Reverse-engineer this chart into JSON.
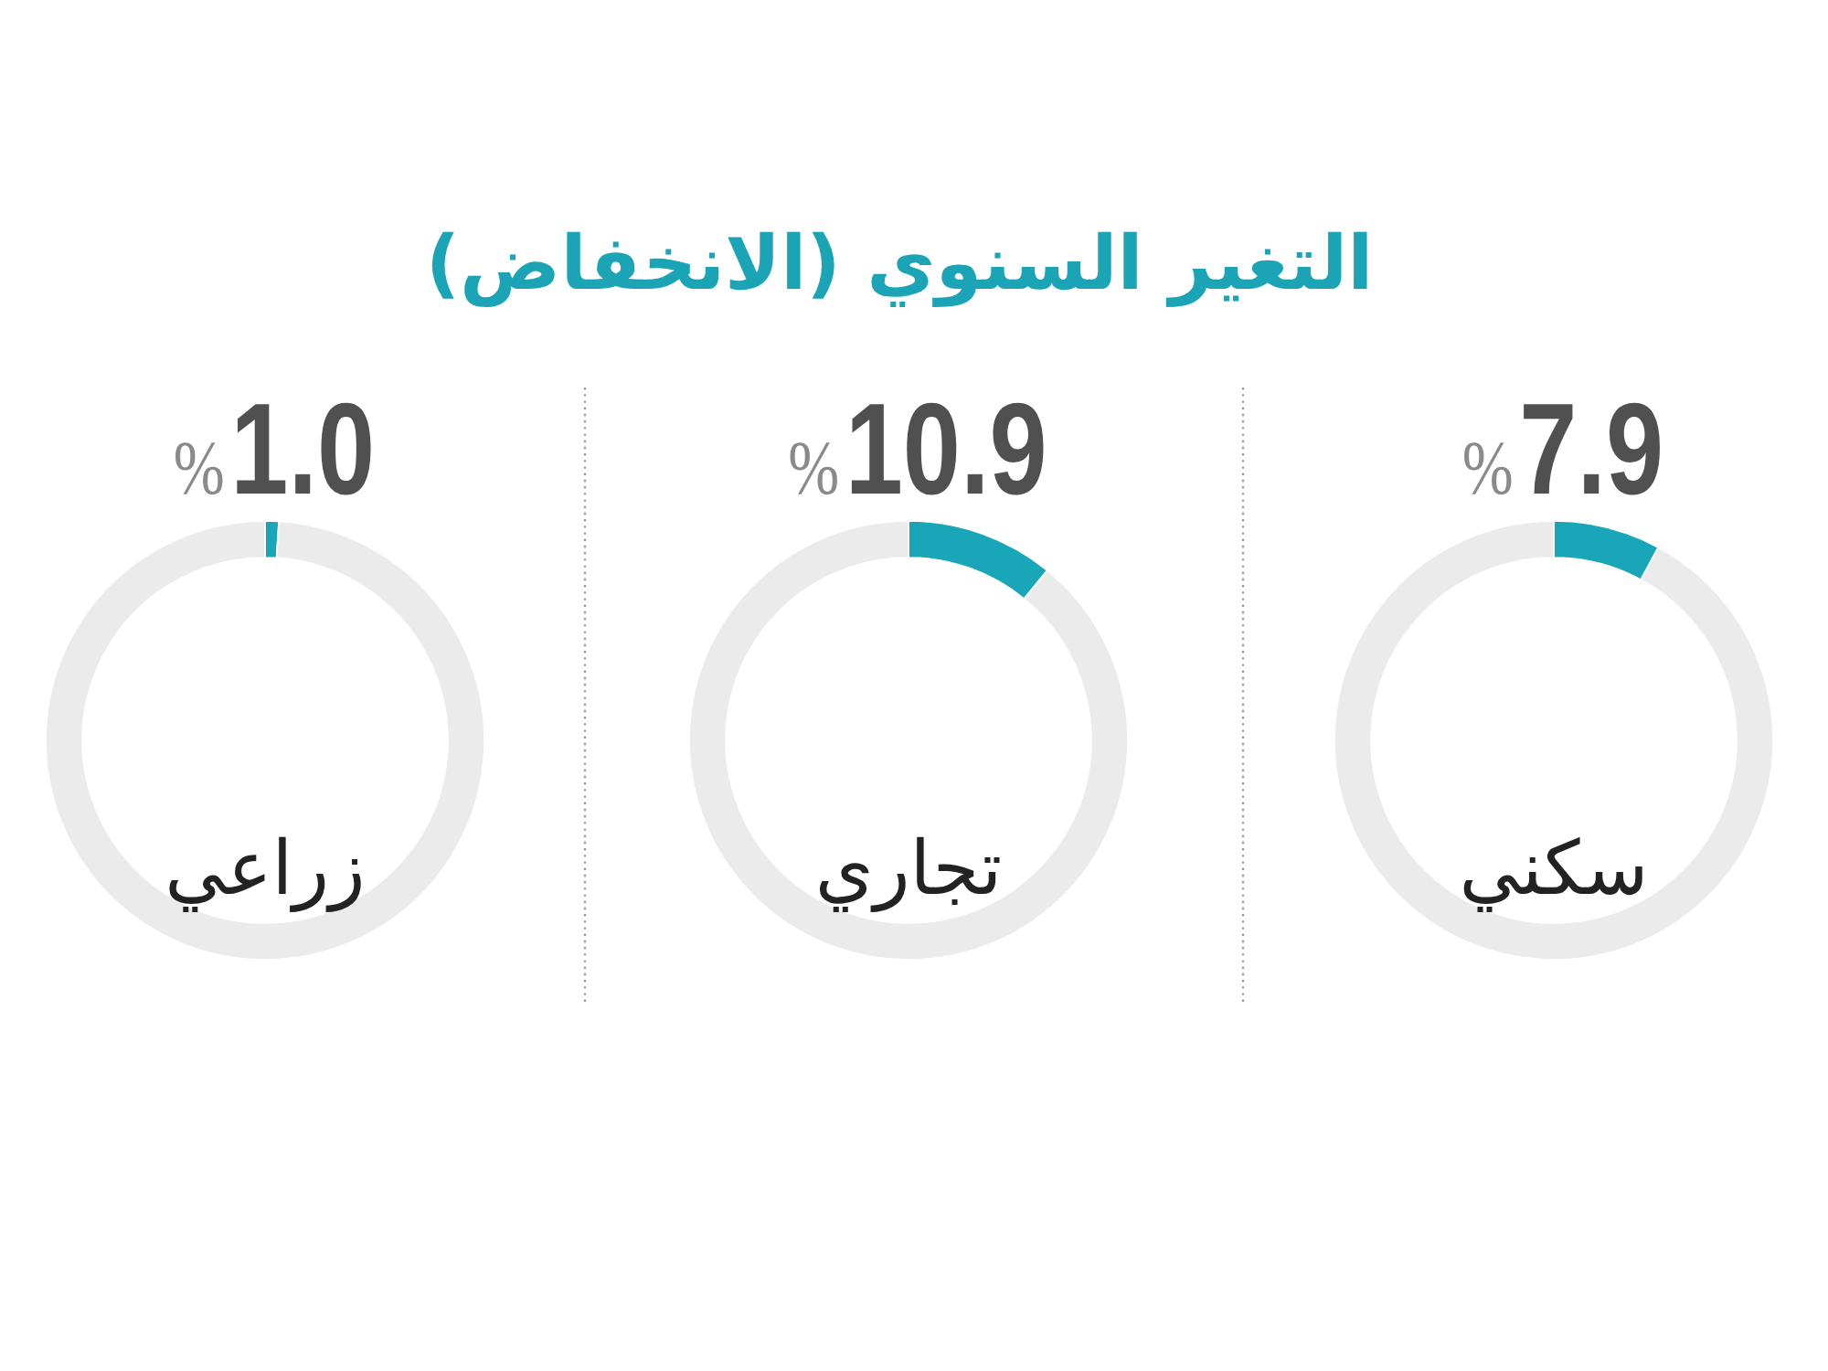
{
  "chart_data": [
    {
      "type": "other",
      "title": "التغير السنوي (الانخفاض)"
    },
    {
      "type": "donut",
      "title": "سكني",
      "categories": [
        null,
        null
      ],
      "values": [
        7.9,
        92.1
      ],
      "colors": [
        "#19a6b9",
        "#ebebeb"
      ],
      "value_labels": [
        "%**7.9**",
        null
      ]
    },
    {
      "type": "donut",
      "title": "تجاري",
      "categories": [
        null,
        null
      ],
      "values": [
        10.9,
        89.1
      ],
      "colors": [
        "#19a6b9",
        "#ebebeb"
      ],
      "value_labels": [
        "%**10.9**",
        null
      ]
    },
    {
      "type": "donut",
      "title": "زراعي",
      "categories": [
        null,
        null
      ],
      "values": [
        1.0,
        99.0
      ],
      "colors": [
        "#19a6b9",
        "#ebebeb"
      ],
      "value_labels": [
        "%**1.0**",
        null
      ]
    }
  ]
}
